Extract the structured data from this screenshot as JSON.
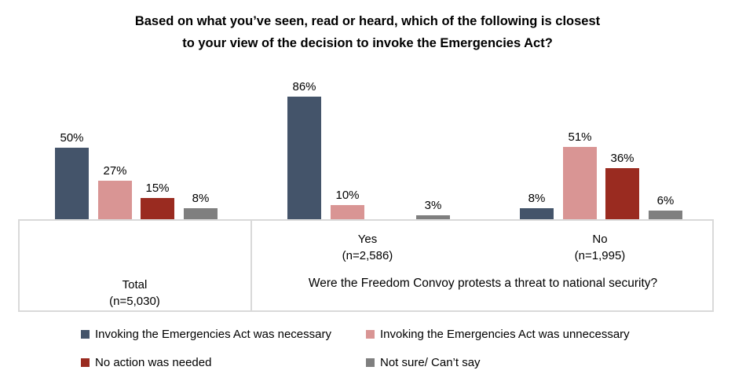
{
  "title": {
    "line1": "Based on what you’ve seen, read or heard, which of the following is closest",
    "line2": "to your view of the decision to invoke the Emergencies Act?"
  },
  "chart_data": {
    "type": "bar",
    "title": "Based on what you’ve seen, read or heard, which of the following is closest to your view of the decision to invoke the Emergencies Act?",
    "unit": "percent",
    "ylim": [
      0,
      100
    ],
    "grid": false,
    "legend_position": "bottom",
    "categories": [
      "Total",
      "Yes",
      "No"
    ],
    "category_sublabels": [
      "(n=5,030)",
      "(n=2,586)",
      "(n=1,995)"
    ],
    "axis_question": "Were the Freedom Convoy protests a threat to national security?",
    "series": [
      {
        "name": "Invoking the Emergencies Act was necessary",
        "color": "#44546A",
        "values": [
          50,
          86,
          8
        ]
      },
      {
        "name": "Invoking the Emergencies Act was unnecessary",
        "color": "#D99594",
        "values": [
          27,
          10,
          51
        ]
      },
      {
        "name": "No action was needed",
        "color": "#9A2B20",
        "values": [
          15,
          null,
          36
        ]
      },
      {
        "name": "Not sure/ Can’t say",
        "color": "#7F7F7F",
        "values": [
          8,
          3,
          6
        ]
      }
    ],
    "bar_labels": [
      [
        "50%",
        "27%",
        "15%",
        "8%"
      ],
      [
        "86%",
        "10%",
        "",
        "3%"
      ],
      [
        "8%",
        "51%",
        "36%",
        "6%"
      ]
    ]
  }
}
